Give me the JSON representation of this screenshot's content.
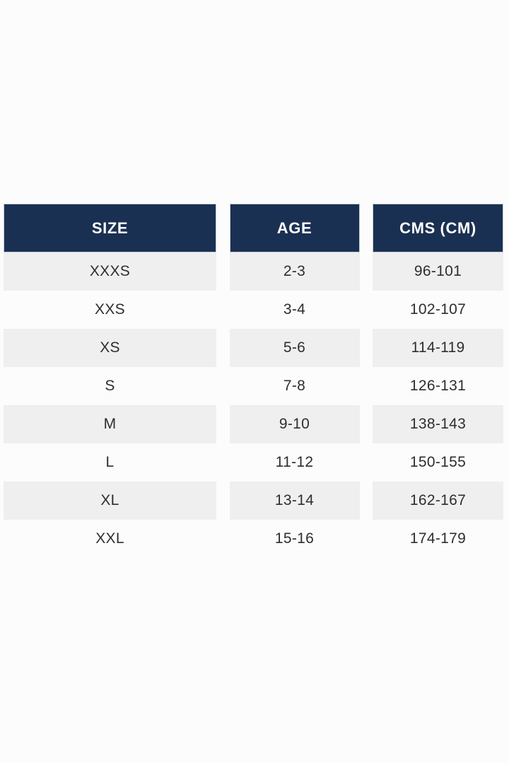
{
  "chart_data": {
    "type": "table",
    "headers": [
      "SIZE",
      "AGE",
      "CMS (CM)"
    ],
    "rows": [
      [
        "XXXS",
        "2-3",
        "96-101"
      ],
      [
        "XXS",
        "3-4",
        "102-107"
      ],
      [
        "XS",
        "5-6",
        "114-119"
      ],
      [
        "S",
        "7-8",
        "126-131"
      ],
      [
        "M",
        "9-10",
        "138-143"
      ],
      [
        "L",
        "11-12",
        "150-155"
      ],
      [
        "XL",
        "13-14",
        "162-167"
      ],
      [
        "XXL",
        "15-16",
        "174-179"
      ]
    ],
    "layout": {
      "columns_as_separate_blocks": true,
      "alternating_rows": "odd rows shaded"
    },
    "colors": {
      "header_bg": "#1a3052",
      "header_text": "#ffffff",
      "row_alt_bg": "#efefef",
      "row_bg": "#fcfcfc",
      "cell_text": "#2e2e2e",
      "page_bg": "#fcfcfc"
    }
  }
}
